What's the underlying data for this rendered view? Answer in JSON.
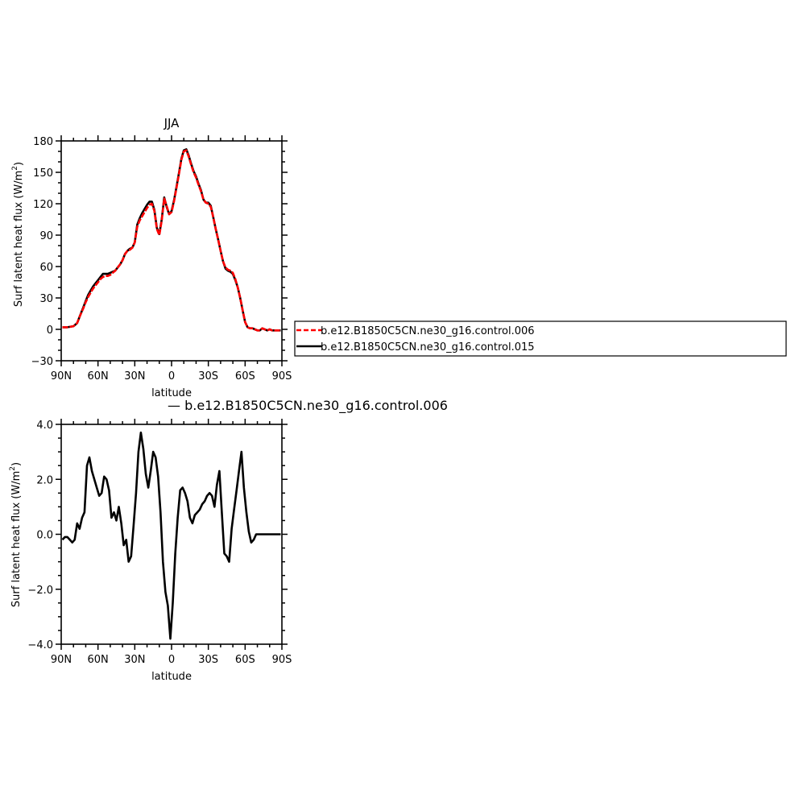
{
  "colors": {
    "red_series": "#ff0000",
    "black_series": "#000000",
    "frame": "#000000"
  },
  "chart_data": [
    {
      "type": "line",
      "title": "JJA",
      "xlabel": "latitude",
      "ylabel": "Surf latent heat flux (W/m²)",
      "ylabel_main": "Surf latent heat flux (W/m",
      "ylabel_sup": "2",
      "ylabel_end": ")",
      "xlim": [
        -90,
        90
      ],
      "ylim": [
        -30,
        180
      ],
      "x_ticks": [
        -90,
        -60,
        -30,
        0,
        30,
        60,
        90
      ],
      "x_tick_labels": [
        "90N",
        "60N",
        "30N",
        "0",
        "30S",
        "60S",
        "90S"
      ],
      "y_ticks": [
        -30,
        0,
        30,
        60,
        90,
        120,
        150,
        180
      ],
      "y_tick_labels": [
        "−30",
        "0",
        "30",
        "60",
        "90",
        "120",
        "150",
        "180"
      ],
      "grid": false,
      "legend_position": "right",
      "series": [
        {
          "name": "b.e12.B1850C5CN.ne30_g16.control.006",
          "color": "red_series",
          "dash": "dashed",
          "x": [
            -89,
            -85,
            -80,
            -77,
            -75,
            -72,
            -70,
            -68,
            -66,
            -64,
            -62,
            -60,
            -58,
            -56,
            -54,
            -52,
            -50,
            -48,
            -46,
            -44,
            -42,
            -40,
            -38,
            -36,
            -34,
            -32,
            -30,
            -28,
            -26,
            -24,
            -22,
            -20,
            -18,
            -16,
            -14,
            -12,
            -10,
            -8,
            -6,
            -4,
            -2,
            0,
            2,
            4,
            6,
            8,
            10,
            12,
            14,
            16,
            18,
            20,
            22,
            24,
            26,
            28,
            30,
            32,
            34,
            36,
            38,
            40,
            42,
            44,
            46,
            48,
            50,
            52,
            54,
            56,
            58,
            60,
            62,
            64,
            66,
            68,
            70,
            72,
            74,
            76,
            78,
            80,
            82,
            84,
            86,
            89
          ],
          "y": [
            2,
            2,
            3,
            6,
            12,
            20,
            26,
            31,
            35,
            39,
            42,
            45,
            48,
            50,
            51,
            51,
            52,
            54,
            56,
            59,
            62,
            66,
            72,
            75,
            76,
            78,
            83,
            98,
            104,
            108,
            112,
            116,
            119,
            120,
            113,
            96,
            90,
            104,
            125,
            118,
            110,
            112,
            122,
            135,
            148,
            162,
            170,
            171,
            165,
            157,
            150,
            145,
            138,
            132,
            124,
            121,
            120,
            117,
            107,
            96,
            86,
            75,
            65,
            59,
            57,
            56,
            54,
            48,
            40,
            30,
            18,
            7,
            2,
            1,
            1,
            0,
            -1,
            -1,
            1,
            0,
            -1,
            0,
            -1,
            -1,
            -1,
            -1
          ]
        },
        {
          "name": "b.e12.B1850C5CN.ne30_g16.control.015",
          "color": "black_series",
          "dash": "solid",
          "x": [
            -89,
            -85,
            -80,
            -77,
            -75,
            -72,
            -70,
            -68,
            -66,
            -64,
            -62,
            -60,
            -58,
            -56,
            -54,
            -52,
            -50,
            -48,
            -46,
            -44,
            -42,
            -40,
            -38,
            -36,
            -34,
            -32,
            -30,
            -28,
            -26,
            -24,
            -22,
            -20,
            -18,
            -16,
            -14,
            -12,
            -10,
            -8,
            -6,
            -4,
            -2,
            0,
            2,
            4,
            6,
            8,
            10,
            12,
            14,
            16,
            18,
            20,
            22,
            24,
            26,
            28,
            30,
            32,
            34,
            36,
            38,
            40,
            42,
            44,
            46,
            48,
            50,
            52,
            54,
            56,
            58,
            60,
            62,
            64,
            66,
            68,
            70,
            72,
            74,
            76,
            78,
            80,
            82,
            84,
            86,
            89
          ],
          "y": [
            2,
            2,
            3,
            6,
            12,
            21,
            27,
            33,
            37,
            41,
            44,
            47,
            50,
            53,
            53,
            53,
            54,
            55,
            56,
            59,
            62,
            66,
            72,
            75,
            77,
            78,
            83,
            100,
            106,
            111,
            115,
            119,
            122,
            122,
            114,
            97,
            91,
            105,
            126,
            117,
            110,
            113,
            123,
            136,
            149,
            163,
            171,
            172,
            166,
            158,
            151,
            146,
            139,
            133,
            124,
            121,
            121,
            118,
            107,
            96,
            86,
            75,
            65,
            58,
            56,
            55,
            53,
            47,
            40,
            30,
            18,
            7,
            2,
            1,
            1,
            0,
            -1,
            -1,
            1,
            0,
            -1,
            0,
            -1,
            -1,
            -1,
            -1
          ]
        }
      ]
    },
    {
      "type": "line",
      "title": "— b.e12.B1850C5CN.ne30_g16.control.006",
      "xlabel": "latitude",
      "ylabel": "Surf latent heat flux (W/m²)",
      "ylabel_main": "Surf latent heat flux (W/m",
      "ylabel_sup": "2",
      "ylabel_end": ")",
      "xlim": [
        -90,
        90
      ],
      "ylim": [
        -4,
        4
      ],
      "x_ticks": [
        -90,
        -60,
        -30,
        0,
        30,
        60,
        90
      ],
      "x_tick_labels": [
        "90N",
        "60N",
        "30N",
        "0",
        "30S",
        "60S",
        "90S"
      ],
      "y_ticks": [
        -4,
        -2,
        0,
        2,
        4
      ],
      "y_tick_labels": [
        "−4.0",
        "−2.0",
        "0.0",
        "2.0",
        "4.0"
      ],
      "grid": false,
      "series": [
        {
          "color": "black_series",
          "dash": "solid",
          "x": [
            -89,
            -87,
            -85,
            -83,
            -81,
            -79,
            -77,
            -75,
            -73,
            -71,
            -69,
            -67,
            -65,
            -63,
            -61,
            -59,
            -57,
            -55,
            -53,
            -51,
            -49,
            -47,
            -45,
            -43,
            -41,
            -39,
            -37,
            -35,
            -33,
            -31,
            -29,
            -27,
            -25,
            -23,
            -21,
            -19,
            -17,
            -15,
            -13,
            -11,
            -9,
            -7,
            -5,
            -3,
            -1,
            1,
            3,
            5,
            7,
            9,
            11,
            13,
            15,
            17,
            19,
            21,
            23,
            25,
            27,
            29,
            31,
            33,
            35,
            37,
            39,
            41,
            43,
            45,
            47,
            49,
            51,
            53,
            55,
            57,
            59,
            61,
            63,
            65,
            67,
            69,
            71,
            73,
            75,
            77,
            79,
            81,
            83,
            85,
            87,
            89
          ],
          "y": [
            -0.2,
            -0.1,
            -0.1,
            -0.2,
            -0.3,
            -0.2,
            0.4,
            0.2,
            0.6,
            0.8,
            2.5,
            2.8,
            2.3,
            2.0,
            1.7,
            1.4,
            1.5,
            2.1,
            2.0,
            1.6,
            0.6,
            0.8,
            0.5,
            1.0,
            0.4,
            -0.4,
            -0.2,
            -1.0,
            -0.8,
            0.3,
            1.5,
            3.0,
            3.7,
            3.1,
            2.2,
            1.7,
            2.3,
            3.0,
            2.8,
            2.1,
            0.8,
            -1.0,
            -2.1,
            -2.6,
            -3.8,
            -2.5,
            -0.7,
            0.6,
            1.6,
            1.7,
            1.5,
            1.2,
            0.6,
            0.4,
            0.7,
            0.8,
            0.9,
            1.1,
            1.2,
            1.4,
            1.5,
            1.4,
            1.0,
            1.8,
            2.3,
            0.8,
            -0.7,
            -0.8,
            -1.0,
            0.2,
            0.9,
            1.6,
            2.3,
            3.0,
            1.7,
            0.8,
            0.1,
            -0.3,
            -0.2,
            0.0,
            0.0,
            0.0,
            0.0,
            0.0,
            0.0,
            0.0,
            0.0,
            0.0,
            0.0,
            0.0
          ]
        }
      ]
    }
  ]
}
